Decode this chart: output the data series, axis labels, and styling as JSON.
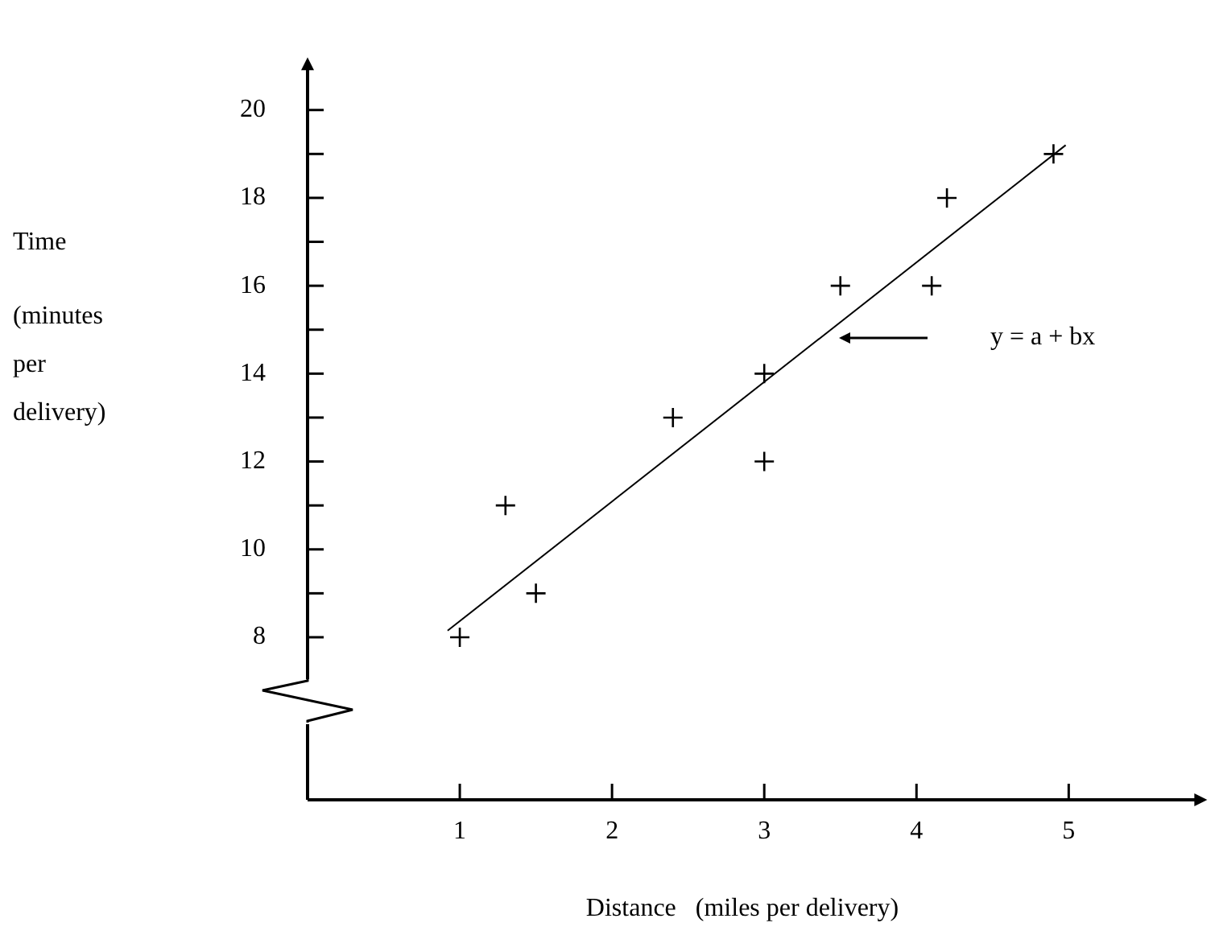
{
  "chart_data": {
    "type": "scatter",
    "xlabel": "Distance   (miles per delivery)",
    "ylabel": "Time\n(minutes\nper\ndelivery)",
    "xlim": [
      0,
      5.91
    ],
    "xticks": [
      1,
      2,
      3,
      4,
      5
    ],
    "ylim": [
      4.3,
      21.2
    ],
    "yticks": [
      {
        "value": 8,
        "label": "8"
      },
      {
        "value": 9,
        "label": null
      },
      10,
      {
        "value": 11,
        "label": null
      },
      12,
      {
        "value": 13,
        "label": null
      },
      14,
      {
        "value": 15,
        "label": null
      },
      16,
      {
        "value": 17,
        "label": null
      },
      18,
      {
        "value": 19,
        "label": null
      },
      20
    ],
    "grid": false,
    "legend": false,
    "marker": "cross",
    "series": [
      {
        "color": "#000000",
        "x": [
          1,
          1.3,
          1.5,
          2.4,
          3,
          3,
          3.5,
          4.1,
          4.2,
          4.9
        ],
        "values": [
          8,
          11,
          9,
          13,
          14,
          12,
          16,
          16,
          18,
          19
        ]
      },
      {
        "type": "line",
        "color": "#000000",
        "marker": "none",
        "x": [
          0.92,
          4.98
        ],
        "values": [
          8.15,
          19.2
        ]
      }
    ],
    "annotations": [
      "y = a + bx"
    ]
  }
}
